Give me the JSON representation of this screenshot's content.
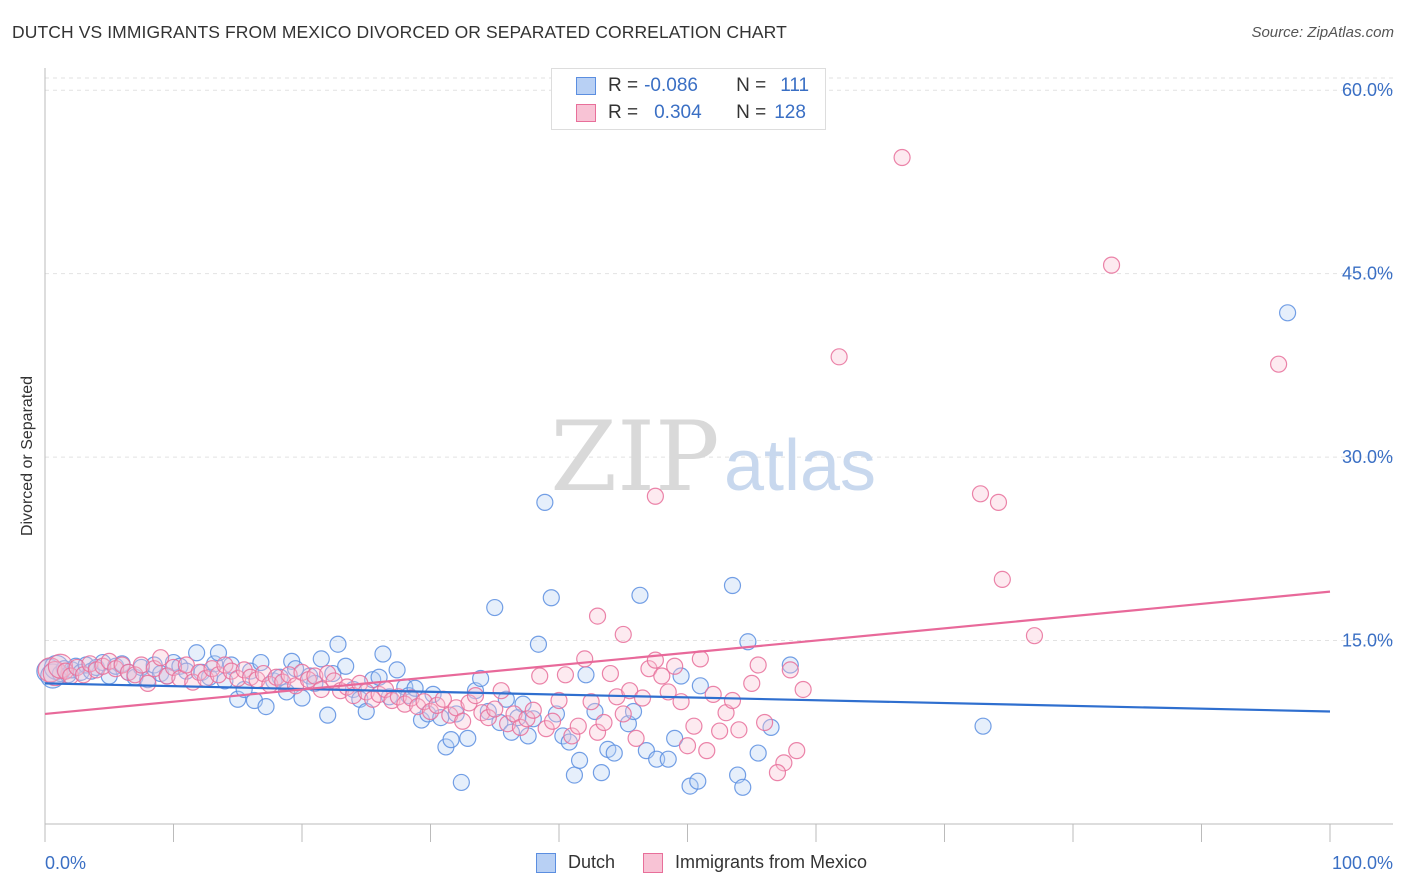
{
  "title": "DUTCH VS IMMIGRANTS FROM MEXICO DIVORCED OR SEPARATED CORRELATION CHART",
  "source": "Source: ZipAtlas.com",
  "watermark": {
    "zip": "ZIP",
    "atlas": "atlas"
  },
  "legend_top": {
    "rows": [
      {
        "r_label": "R =",
        "r_value": "-0.086",
        "n_label": "N =",
        "n_value": "111"
      },
      {
        "r_label": "R =",
        "r_value": "0.304",
        "n_label": "N =",
        "n_value": "128"
      }
    ]
  },
  "chart_data": {
    "type": "scatter",
    "title": "DUTCH VS IMMIGRANTS FROM MEXICO DIVORCED OR SEPARATED CORRELATION CHART",
    "xlabel": "",
    "ylabel": "Divorced or Separated",
    "xlim": [
      0,
      100
    ],
    "ylim": [
      0,
      61
    ],
    "x_tick_labels": [
      "0.0%",
      "100.0%"
    ],
    "y_ticks": [
      15,
      30,
      45,
      60
    ],
    "y_tick_labels": [
      "15.0%",
      "30.0%",
      "45.0%",
      "60.0%"
    ],
    "grid": true,
    "legend_position": "bottom",
    "colors": {
      "dutch": "#5b8ee0",
      "dutch_fill": "#b8d0f4",
      "mexico": "#e86f9a",
      "mexico_fill": "#f8c3d5",
      "dutch_line": "#2f6fcf",
      "mexico_line": "#e8699a",
      "tick_label": "#3a6fc4"
    },
    "series": [
      {
        "name": "Dutch",
        "R": -0.086,
        "N": 111,
        "trend": [
          [
            0,
            11.5
          ],
          [
            100,
            9.2
          ]
        ],
        "points": [
          [
            0.3,
            12.5
          ],
          [
            0.6,
            12.1
          ],
          [
            0.9,
            12.8
          ],
          [
            1.2,
            12.3
          ],
          [
            1.5,
            12.7
          ],
          [
            1.8,
            12.2
          ],
          [
            2.1,
            12.6
          ],
          [
            2.4,
            12.9
          ],
          [
            2.8,
            12.4
          ],
          [
            3.2,
            13.0
          ],
          [
            3.6,
            12.5
          ],
          [
            4.0,
            12.8
          ],
          [
            4.5,
            13.2
          ],
          [
            5.0,
            12.1
          ],
          [
            5.5,
            12.9
          ],
          [
            6.0,
            13.1
          ],
          [
            6.5,
            12.4
          ],
          [
            7.0,
            12.0
          ],
          [
            7.5,
            12.8
          ],
          [
            8.0,
            11.8
          ],
          [
            8.5,
            13.0
          ],
          [
            9.0,
            12.3
          ],
          [
            9.5,
            12.1
          ],
          [
            10.0,
            13.2
          ],
          [
            10.5,
            12.9
          ],
          [
            11.0,
            12.5
          ],
          [
            11.8,
            14.0
          ],
          [
            12.2,
            12.4
          ],
          [
            12.8,
            12.0
          ],
          [
            13.2,
            13.1
          ],
          [
            13.5,
            14.0
          ],
          [
            14.0,
            11.7
          ],
          [
            14.5,
            13.0
          ],
          [
            15.0,
            10.2
          ],
          [
            15.5,
            11.0
          ],
          [
            16.0,
            12.5
          ],
          [
            16.3,
            10.1
          ],
          [
            16.8,
            13.2
          ],
          [
            17.2,
            9.6
          ],
          [
            17.8,
            11.7
          ],
          [
            18.3,
            12.0
          ],
          [
            18.8,
            10.8
          ],
          [
            19.2,
            13.3
          ],
          [
            19.5,
            12.7
          ],
          [
            20.0,
            10.3
          ],
          [
            20.6,
            12.1
          ],
          [
            21.0,
            11.5
          ],
          [
            21.5,
            13.5
          ],
          [
            22.0,
            8.9
          ],
          [
            22.4,
            12.3
          ],
          [
            22.8,
            14.7
          ],
          [
            23.4,
            12.9
          ],
          [
            24.0,
            11.0
          ],
          [
            24.5,
            10.2
          ],
          [
            25.0,
            9.2
          ],
          [
            25.5,
            11.8
          ],
          [
            26.0,
            12.0
          ],
          [
            26.3,
            13.9
          ],
          [
            26.8,
            10.4
          ],
          [
            27.4,
            12.6
          ],
          [
            28.0,
            11.2
          ],
          [
            28.3,
            10.5
          ],
          [
            28.8,
            11.1
          ],
          [
            29.3,
            8.5
          ],
          [
            29.8,
            9.0
          ],
          [
            30.2,
            10.6
          ],
          [
            30.8,
            8.7
          ],
          [
            31.2,
            6.3
          ],
          [
            31.6,
            6.9
          ],
          [
            32.0,
            9.0
          ],
          [
            32.4,
            3.4
          ],
          [
            32.9,
            7.0
          ],
          [
            33.5,
            10.9
          ],
          [
            33.9,
            11.9
          ],
          [
            34.5,
            9.2
          ],
          [
            35.0,
            17.7
          ],
          [
            35.4,
            8.3
          ],
          [
            35.9,
            10.2
          ],
          [
            36.3,
            7.5
          ],
          [
            36.8,
            8.7
          ],
          [
            37.2,
            9.8
          ],
          [
            37.6,
            7.2
          ],
          [
            38.0,
            8.6
          ],
          [
            38.4,
            14.7
          ],
          [
            38.9,
            26.3
          ],
          [
            39.4,
            18.5
          ],
          [
            39.8,
            9.0
          ],
          [
            40.3,
            7.2
          ],
          [
            40.8,
            6.7
          ],
          [
            41.2,
            4.0
          ],
          [
            41.6,
            5.2
          ],
          [
            42.1,
            12.2
          ],
          [
            42.8,
            9.2
          ],
          [
            43.3,
            4.2
          ],
          [
            43.8,
            6.1
          ],
          [
            44.3,
            5.8
          ],
          [
            45.4,
            8.2
          ],
          [
            45.8,
            9.2
          ],
          [
            46.3,
            18.7
          ],
          [
            46.8,
            6.0
          ],
          [
            47.6,
            5.3
          ],
          [
            48.5,
            5.3
          ],
          [
            49.0,
            7.0
          ],
          [
            49.5,
            12.1
          ],
          [
            50.2,
            3.1
          ],
          [
            50.8,
            3.5
          ],
          [
            51.0,
            11.3
          ],
          [
            53.5,
            19.5
          ],
          [
            53.9,
            4.0
          ],
          [
            54.3,
            3.0
          ],
          [
            54.7,
            14.9
          ],
          [
            55.5,
            5.8
          ],
          [
            56.5,
            7.9
          ],
          [
            58.0,
            13.0
          ],
          [
            73.0,
            8.0
          ],
          [
            96.7,
            41.8
          ]
        ]
      },
      {
        "name": "Immigrants from Mexico",
        "R": 0.304,
        "N": 128,
        "trend": [
          [
            0,
            9.0
          ],
          [
            100,
            19.0
          ]
        ],
        "points": [
          [
            0.4,
            12.6
          ],
          [
            0.8,
            12.3
          ],
          [
            1.2,
            12.9
          ],
          [
            1.6,
            12.5
          ],
          [
            2.0,
            12.1
          ],
          [
            2.5,
            12.8
          ],
          [
            3.0,
            12.2
          ],
          [
            3.5,
            13.1
          ],
          [
            4.0,
            12.6
          ],
          [
            4.5,
            12.9
          ],
          [
            5.0,
            13.3
          ],
          [
            5.5,
            12.7
          ],
          [
            6.0,
            13.0
          ],
          [
            6.5,
            12.4
          ],
          [
            7.0,
            12.2
          ],
          [
            7.5,
            13.0
          ],
          [
            8.0,
            11.5
          ],
          [
            8.5,
            12.7
          ],
          [
            9.0,
            13.6
          ],
          [
            9.5,
            12.1
          ],
          [
            10.0,
            12.8
          ],
          [
            10.5,
            11.9
          ],
          [
            11.0,
            13.0
          ],
          [
            11.5,
            11.6
          ],
          [
            12.0,
            12.4
          ],
          [
            12.5,
            11.9
          ],
          [
            13.0,
            12.7
          ],
          [
            13.5,
            12.2
          ],
          [
            14.0,
            13.0
          ],
          [
            14.5,
            12.5
          ],
          [
            15.0,
            11.9
          ],
          [
            15.5,
            12.6
          ],
          [
            16.0,
            12.0
          ],
          [
            16.5,
            11.8
          ],
          [
            17.0,
            12.3
          ],
          [
            17.5,
            11.4
          ],
          [
            18.0,
            12.0
          ],
          [
            18.5,
            11.6
          ],
          [
            19.0,
            12.2
          ],
          [
            19.5,
            11.3
          ],
          [
            20.0,
            12.4
          ],
          [
            20.5,
            11.8
          ],
          [
            21.0,
            12.1
          ],
          [
            21.5,
            11.0
          ],
          [
            22.0,
            12.3
          ],
          [
            22.5,
            11.7
          ],
          [
            23.0,
            10.9
          ],
          [
            23.5,
            11.2
          ],
          [
            24.0,
            10.5
          ],
          [
            24.5,
            11.5
          ],
          [
            25.0,
            10.8
          ],
          [
            25.5,
            10.2
          ],
          [
            26.0,
            10.6
          ],
          [
            26.5,
            11.0
          ],
          [
            27.0,
            10.1
          ],
          [
            27.5,
            10.4
          ],
          [
            28.0,
            9.8
          ],
          [
            28.5,
            10.3
          ],
          [
            29.0,
            9.6
          ],
          [
            29.5,
            10.0
          ],
          [
            30.0,
            9.2
          ],
          [
            30.5,
            9.7
          ],
          [
            31.0,
            10.2
          ],
          [
            31.5,
            8.9
          ],
          [
            32.0,
            9.5
          ],
          [
            32.5,
            8.4
          ],
          [
            33.0,
            9.9
          ],
          [
            33.5,
            10.5
          ],
          [
            34.0,
            9.1
          ],
          [
            34.5,
            8.7
          ],
          [
            35.0,
            9.4
          ],
          [
            35.5,
            10.9
          ],
          [
            36.0,
            8.2
          ],
          [
            36.5,
            9.0
          ],
          [
            37.0,
            7.9
          ],
          [
            37.5,
            8.6
          ],
          [
            38.0,
            9.3
          ],
          [
            38.5,
            12.1
          ],
          [
            39.0,
            7.8
          ],
          [
            39.5,
            8.4
          ],
          [
            40.0,
            10.1
          ],
          [
            40.5,
            12.2
          ],
          [
            41.0,
            7.2
          ],
          [
            41.5,
            8.0
          ],
          [
            42.0,
            13.5
          ],
          [
            42.5,
            10.0
          ],
          [
            43.0,
            7.5
          ],
          [
            43.5,
            8.3
          ],
          [
            44.0,
            12.3
          ],
          [
            44.5,
            10.4
          ],
          [
            45.0,
            9.0
          ],
          [
            45.5,
            10.9
          ],
          [
            46.0,
            7.0
          ],
          [
            46.5,
            10.3
          ],
          [
            47.0,
            12.7
          ],
          [
            47.5,
            13.4
          ],
          [
            48.0,
            12.1
          ],
          [
            48.5,
            10.8
          ],
          [
            49.0,
            12.9
          ],
          [
            49.5,
            10.0
          ],
          [
            50.0,
            6.4
          ],
          [
            50.5,
            8.0
          ],
          [
            51.0,
            13.5
          ],
          [
            51.5,
            6.0
          ],
          [
            52.0,
            10.6
          ],
          [
            52.5,
            7.6
          ],
          [
            53.0,
            9.1
          ],
          [
            53.5,
            10.1
          ],
          [
            54.0,
            7.7
          ],
          [
            55.0,
            11.5
          ],
          [
            55.5,
            13.0
          ],
          [
            56.0,
            8.3
          ],
          [
            57.5,
            5.0
          ],
          [
            58.0,
            12.6
          ],
          [
            58.5,
            6.0
          ],
          [
            59.0,
            11.0
          ],
          [
            43.0,
            17.0
          ],
          [
            45.0,
            15.5
          ],
          [
            47.5,
            26.8
          ],
          [
            61.8,
            38.2
          ],
          [
            66.7,
            54.5
          ],
          [
            72.8,
            27.0
          ],
          [
            74.2,
            26.3
          ],
          [
            74.5,
            20.0
          ],
          [
            77.0,
            15.4
          ],
          [
            83.0,
            45.7
          ],
          [
            96.0,
            37.6
          ],
          [
            57.0,
            4.2
          ]
        ]
      }
    ]
  },
  "bottom_legend": [
    {
      "label": "Dutch"
    },
    {
      "label": "Immigrants from Mexico"
    }
  ]
}
